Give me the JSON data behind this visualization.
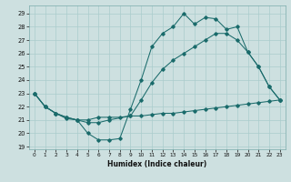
{
  "xlabel": "Humidex (Indice chaleur)",
  "xlim": [
    -0.5,
    23.5
  ],
  "ylim": [
    18.8,
    29.6
  ],
  "yticks": [
    19,
    20,
    21,
    22,
    23,
    24,
    25,
    26,
    27,
    28,
    29
  ],
  "xticks": [
    0,
    1,
    2,
    3,
    4,
    5,
    6,
    7,
    8,
    9,
    10,
    11,
    12,
    13,
    14,
    15,
    16,
    17,
    18,
    19,
    20,
    21,
    22,
    23
  ],
  "bg_color": "#cde0e0",
  "grid_color": "#aacccc",
  "line_color": "#1a6b6b",
  "line1_x": [
    0,
    1,
    2,
    3,
    4,
    5,
    6,
    7,
    8,
    9,
    10,
    11,
    12,
    13,
    14,
    15,
    16,
    17,
    18,
    19,
    20,
    21,
    22,
    23
  ],
  "line1_y": [
    23.0,
    22.0,
    21.5,
    21.1,
    21.0,
    20.0,
    19.5,
    19.5,
    19.6,
    21.8,
    24.0,
    26.5,
    27.5,
    28.0,
    29.0,
    28.2,
    28.7,
    28.6,
    27.8,
    28.0,
    26.1,
    25.0,
    23.5,
    22.5
  ],
  "line2_x": [
    0,
    1,
    2,
    3,
    4,
    5,
    6,
    7,
    9,
    10,
    11,
    12,
    13,
    14,
    15,
    16,
    17,
    18,
    19,
    20,
    21,
    22,
    23
  ],
  "line2_y": [
    23.0,
    22.0,
    21.5,
    21.2,
    21.0,
    20.8,
    20.8,
    21.0,
    21.3,
    22.5,
    23.8,
    24.8,
    25.5,
    26.0,
    26.5,
    27.0,
    27.5,
    27.5,
    27.0,
    26.1,
    25.0,
    23.5,
    22.5
  ],
  "line3_x": [
    0,
    1,
    2,
    3,
    4,
    5,
    6,
    7,
    8,
    9,
    10,
    11,
    12,
    13,
    14,
    15,
    16,
    17,
    18,
    19,
    20,
    21,
    22,
    23
  ],
  "line3_y": [
    23.0,
    22.0,
    21.5,
    21.2,
    21.0,
    21.0,
    21.2,
    21.2,
    21.2,
    21.3,
    21.3,
    21.4,
    21.5,
    21.5,
    21.6,
    21.7,
    21.8,
    21.9,
    22.0,
    22.1,
    22.2,
    22.3,
    22.4,
    22.5
  ]
}
